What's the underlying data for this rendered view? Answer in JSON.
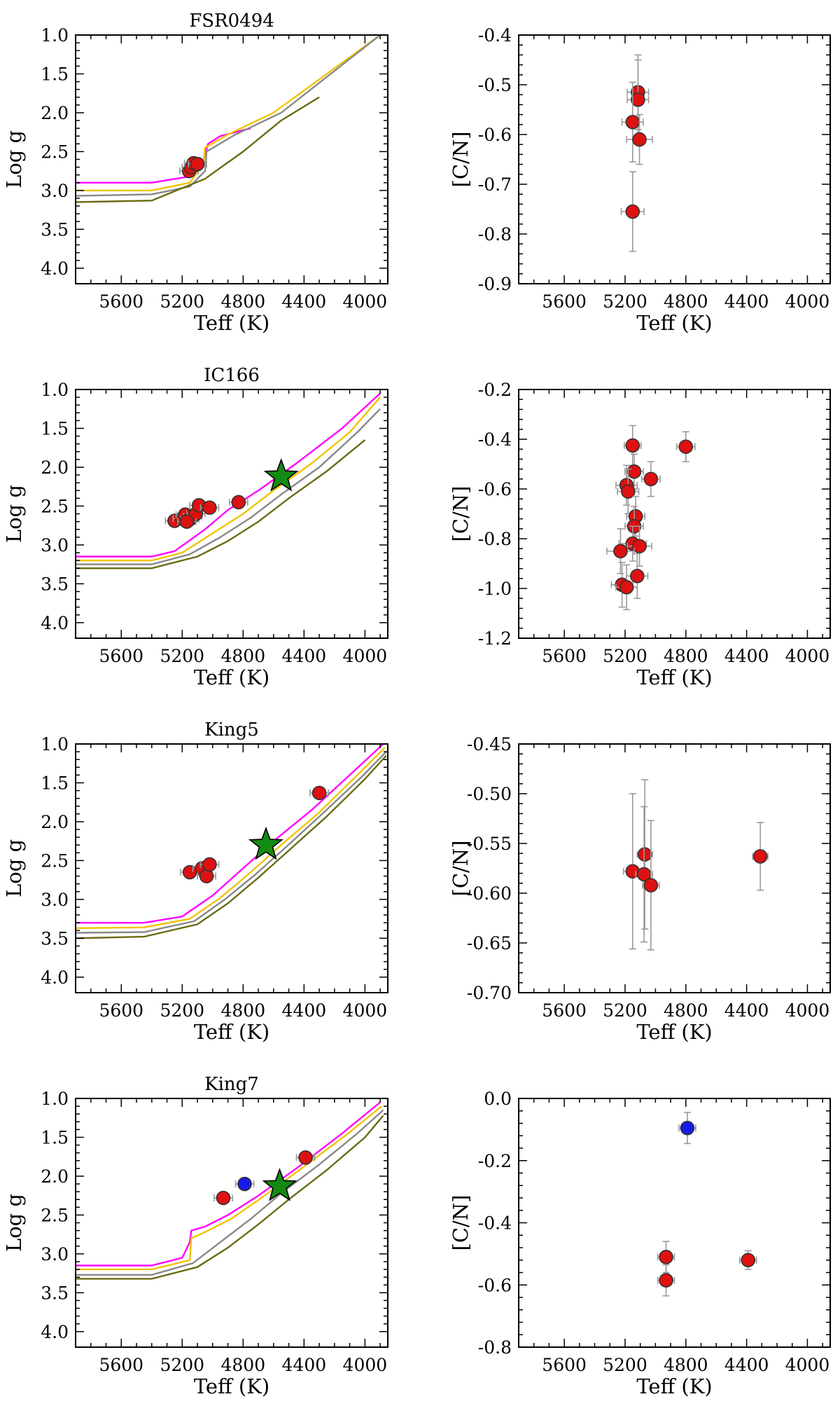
{
  "colors": {
    "red_star": "#dd1111",
    "blue_star": "#1a1ae6",
    "green_star": "#138a13",
    "errorbar": "#9a9a9a",
    "iso_magenta": "#ff00ff",
    "iso_gold": "#f0c400",
    "iso_gray": "#888888",
    "iso_olive": "#6b6b14"
  },
  "chart_data": [
    {
      "type": "scatter",
      "cluster": "FSR0494",
      "panel": "hr",
      "title": "FSR0494",
      "xlabel": "Teff (K)",
      "ylabel": "Log g",
      "xlim": [
        5900,
        3850
      ],
      "ylim": [
        4.2,
        1.0
      ],
      "xticks": [
        "5600",
        "5200",
        "4800",
        "4400",
        "4000"
      ],
      "yticks": [
        "1.0",
        "1.5",
        "2.0",
        "2.5",
        "3.0",
        "3.5",
        "4.0"
      ],
      "stars": [
        [
          5155,
          2.75
        ],
        [
          5110,
          2.67
        ],
        [
          5140,
          2.7
        ],
        [
          5125,
          2.65
        ],
        [
          5100,
          2.66
        ]
      ],
      "isochrones": [
        {
          "color": "magenta",
          "points": [
            [
              5900,
              2.9
            ],
            [
              5400,
              2.9
            ],
            [
              5150,
              2.82
            ],
            [
              5060,
              2.6
            ],
            [
              5030,
              2.4
            ],
            [
              4950,
              2.3
            ],
            [
              4750,
              2.2
            ]
          ]
        },
        {
          "color": "gold",
          "points": [
            [
              5900,
              3.0
            ],
            [
              5400,
              3.0
            ],
            [
              5150,
              2.9
            ],
            [
              5060,
              2.65
            ],
            [
              5050,
              2.45
            ],
            [
              4900,
              2.28
            ],
            [
              4600,
              2.0
            ],
            [
              3900,
              1.0
            ]
          ]
        },
        {
          "color": "gray",
          "points": [
            [
              5900,
              3.07
            ],
            [
              5400,
              3.05
            ],
            [
              5150,
              2.95
            ],
            [
              5050,
              2.75
            ],
            [
              5040,
              2.5
            ],
            [
              4850,
              2.28
            ],
            [
              4550,
              2.0
            ],
            [
              3900,
              1.0
            ]
          ]
        },
        {
          "color": "olive",
          "points": [
            [
              5900,
              3.15
            ],
            [
              5400,
              3.13
            ],
            [
              5050,
              2.85
            ],
            [
              4800,
              2.5
            ],
            [
              4550,
              2.1
            ],
            [
              4300,
              1.8
            ]
          ]
        }
      ]
    },
    {
      "type": "scatter",
      "cluster": "FSR0494",
      "panel": "cn",
      "title": "",
      "xlabel": "Teff (K)",
      "ylabel": "[C/N]",
      "xlim": [
        5900,
        3850
      ],
      "ylim": [
        -0.9,
        -0.4
      ],
      "xticks": [
        "5600",
        "5200",
        "4800",
        "4400",
        "4000"
      ],
      "yticks": [
        "-0.4",
        "-0.5",
        "-0.6",
        "-0.7",
        "-0.8",
        "-0.9"
      ],
      "stars": [
        [
          5115,
          -0.515,
          70,
          0.075
        ],
        [
          5115,
          -0.53,
          70,
          0.08
        ],
        [
          5150,
          -0.575,
          70,
          0.08
        ],
        [
          5105,
          -0.61,
          85,
          0.05
        ],
        [
          5150,
          -0.755,
          75,
          0.08
        ]
      ]
    },
    {
      "type": "scatter",
      "cluster": "IC166",
      "panel": "hr",
      "title": "IC166",
      "xlabel": "Teff (K)",
      "ylabel": "Log g",
      "xlim": [
        5900,
        3850
      ],
      "ylim": [
        4.2,
        1.0
      ],
      "xticks": [
        "5600",
        "5200",
        "4800",
        "4400",
        "4000"
      ],
      "yticks": [
        "1.0",
        "1.5",
        "2.0",
        "2.5",
        "3.0",
        "3.5",
        "4.0"
      ],
      "stars": [
        [
          5250,
          2.69
        ],
        [
          5200,
          2.66
        ],
        [
          5180,
          2.61
        ],
        [
          5150,
          2.67
        ],
        [
          5130,
          2.63
        ],
        [
          5110,
          2.6
        ],
        [
          5090,
          2.49
        ],
        [
          5020,
          2.52
        ],
        [
          4830,
          2.45
        ],
        [
          5170,
          2.7
        ]
      ],
      "special": [
        [
          4550,
          2.12
        ]
      ],
      "isochrones": [
        {
          "color": "magenta",
          "points": [
            [
              5900,
              3.15
            ],
            [
              5400,
              3.15
            ],
            [
              5250,
              3.08
            ],
            [
              5050,
              2.8
            ],
            [
              4900,
              2.55
            ],
            [
              4700,
              2.3
            ],
            [
              4450,
              1.95
            ],
            [
              4150,
              1.5
            ],
            [
              3900,
              1.05
            ]
          ]
        },
        {
          "color": "gold",
          "points": [
            [
              5900,
              3.2
            ],
            [
              5400,
              3.2
            ],
            [
              5200,
              3.1
            ],
            [
              5000,
              2.85
            ],
            [
              4800,
              2.6
            ],
            [
              4600,
              2.3
            ],
            [
              4350,
              1.95
            ],
            [
              4100,
              1.55
            ],
            [
              3900,
              1.1
            ]
          ]
        },
        {
          "color": "gray",
          "points": [
            [
              5900,
              3.25
            ],
            [
              5400,
              3.25
            ],
            [
              5150,
              3.12
            ],
            [
              4950,
              2.9
            ],
            [
              4750,
              2.65
            ],
            [
              4550,
              2.35
            ],
            [
              4300,
              2.0
            ],
            [
              4050,
              1.55
            ],
            [
              3900,
              1.25
            ]
          ]
        },
        {
          "color": "olive",
          "points": [
            [
              5900,
              3.3
            ],
            [
              5400,
              3.3
            ],
            [
              5100,
              3.15
            ],
            [
              4900,
              2.95
            ],
            [
              4700,
              2.7
            ],
            [
              4500,
              2.4
            ],
            [
              4250,
              2.05
            ],
            [
              4000,
              1.65
            ]
          ]
        }
      ]
    },
    {
      "type": "scatter",
      "cluster": "IC166",
      "panel": "cn",
      "title": "",
      "xlabel": "Teff (K)",
      "ylabel": "[C/N]",
      "xlim": [
        5900,
        3850
      ],
      "ylim": [
        -1.2,
        -0.2
      ],
      "xticks": [
        "5600",
        "5200",
        "4800",
        "4400",
        "4000"
      ],
      "yticks": [
        "-0.2",
        "-0.4",
        "-0.6",
        "-0.8",
        "-1.0",
        "-1.2"
      ],
      "stars": [
        [
          5150,
          -0.425,
          55,
          0.08
        ],
        [
          4800,
          -0.43,
          60,
          0.06
        ],
        [
          5140,
          -0.53,
          60,
          0.07
        ],
        [
          5030,
          -0.56,
          60,
          0.07
        ],
        [
          5190,
          -0.585,
          70,
          0.08
        ],
        [
          5180,
          -0.61,
          70,
          0.09
        ],
        [
          5130,
          -0.71,
          60,
          0.08
        ],
        [
          5140,
          -0.75,
          60,
          0.08
        ],
        [
          5150,
          -0.82,
          90,
          0.07
        ],
        [
          5105,
          -0.83,
          80,
          0.08
        ],
        [
          5230,
          -0.85,
          90,
          0.09
        ],
        [
          5120,
          -0.95,
          70,
          0.09
        ],
        [
          5220,
          -0.985,
          70,
          0.09
        ],
        [
          5190,
          -0.995,
          70,
          0.09
        ]
      ]
    },
    {
      "type": "scatter",
      "cluster": "King5",
      "panel": "hr",
      "title": "King5",
      "xlabel": "Teff (K)",
      "ylabel": "Log g",
      "xlim": [
        5900,
        3850
      ],
      "ylim": [
        4.2,
        1.0
      ],
      "xticks": [
        "5600",
        "5200",
        "4800",
        "4400",
        "4000"
      ],
      "yticks": [
        "1.0",
        "1.5",
        "2.0",
        "2.5",
        "3.0",
        "3.5",
        "4.0"
      ],
      "stars": [
        [
          5150,
          2.65
        ],
        [
          5070,
          2.6
        ],
        [
          5040,
          2.7
        ],
        [
          5020,
          2.55
        ],
        [
          4300,
          1.63
        ]
      ],
      "special": [
        [
          4650,
          2.3
        ]
      ],
      "isochrones": [
        {
          "color": "magenta",
          "points": [
            [
              5900,
              3.3
            ],
            [
              5450,
              3.3
            ],
            [
              5200,
              3.22
            ],
            [
              5000,
              2.95
            ],
            [
              4800,
              2.6
            ],
            [
              4600,
              2.25
            ],
            [
              4350,
              1.85
            ],
            [
              4100,
              1.4
            ],
            [
              3880,
              1.0
            ]
          ]
        },
        {
          "color": "gold",
          "points": [
            [
              5900,
              3.37
            ],
            [
              5450,
              3.36
            ],
            [
              5150,
              3.25
            ],
            [
              4950,
              2.98
            ],
            [
              4750,
              2.65
            ],
            [
              4550,
              2.3
            ],
            [
              4300,
              1.88
            ],
            [
              4050,
              1.4
            ],
            [
              3870,
              1.05
            ]
          ]
        },
        {
          "color": "gray",
          "points": [
            [
              5900,
              3.43
            ],
            [
              5450,
              3.42
            ],
            [
              5120,
              3.28
            ],
            [
              4920,
              3.0
            ],
            [
              4720,
              2.68
            ],
            [
              4520,
              2.33
            ],
            [
              4280,
              1.9
            ],
            [
              4020,
              1.42
            ],
            [
              3860,
              1.1
            ]
          ]
        },
        {
          "color": "olive",
          "points": [
            [
              5900,
              3.5
            ],
            [
              5450,
              3.48
            ],
            [
              5100,
              3.32
            ],
            [
              4900,
              3.05
            ],
            [
              4700,
              2.72
            ],
            [
              4500,
              2.37
            ],
            [
              4250,
              1.93
            ],
            [
              4000,
              1.45
            ],
            [
              3860,
              1.15
            ]
          ]
        }
      ]
    },
    {
      "type": "scatter",
      "cluster": "King5",
      "panel": "cn",
      "title": "",
      "xlabel": "Teff (K)",
      "ylabel": "[C/N]",
      "xlim": [
        5900,
        3850
      ],
      "ylim": [
        -0.7,
        -0.45
      ],
      "xticks": [
        "5600",
        "5200",
        "4800",
        "4400",
        "4000"
      ],
      "yticks": [
        "-0.45",
        "-0.50",
        "-0.55",
        "-0.60",
        "-0.65",
        "-0.70"
      ],
      "stars": [
        [
          5150,
          -0.578,
          60,
          0.078
        ],
        [
          5070,
          -0.561,
          50,
          0.075
        ],
        [
          5075,
          -0.581,
          55,
          0.068
        ],
        [
          5030,
          -0.592,
          55,
          0.065
        ],
        [
          4310,
          -0.563,
          50,
          0.034
        ]
      ]
    },
    {
      "type": "scatter",
      "cluster": "King7",
      "panel": "hr",
      "title": "King7",
      "xlabel": "Teff (K)",
      "ylabel": "Log g",
      "xlim": [
        5900,
        3850
      ],
      "ylim": [
        4.2,
        1.0
      ],
      "xticks": [
        "5600",
        "5200",
        "4800",
        "4400",
        "4000"
      ],
      "yticks": [
        "1.0",
        "1.5",
        "2.0",
        "2.5",
        "3.0",
        "3.5",
        "4.0"
      ],
      "stars": [
        [
          4930,
          2.28
        ],
        [
          4390,
          1.76
        ]
      ],
      "blue": [
        [
          4790,
          2.1
        ]
      ],
      "special": [
        [
          4560,
          2.13
        ]
      ],
      "isochrones": [
        {
          "color": "magenta",
          "points": [
            [
              5900,
              3.15
            ],
            [
              5400,
              3.15
            ],
            [
              5200,
              3.05
            ],
            [
              5150,
              2.85
            ],
            [
              5140,
              2.7
            ],
            [
              5050,
              2.65
            ],
            [
              4900,
              2.5
            ],
            [
              4700,
              2.25
            ],
            [
              4450,
              1.9
            ],
            [
              4150,
              1.45
            ],
            [
              3900,
              1.05
            ]
          ]
        },
        {
          "color": "gold",
          "points": [
            [
              5900,
              3.2
            ],
            [
              5400,
              3.2
            ],
            [
              5150,
              3.08
            ],
            [
              5140,
              2.8
            ],
            [
              5050,
              2.72
            ],
            [
              4880,
              2.55
            ],
            [
              4680,
              2.28
            ],
            [
              4430,
              1.92
            ],
            [
              4130,
              1.48
            ],
            [
              3890,
              1.1
            ]
          ]
        },
        {
          "color": "gray",
          "points": [
            [
              5900,
              3.27
            ],
            [
              5400,
              3.27
            ],
            [
              5130,
              3.12
            ],
            [
              4950,
              2.85
            ],
            [
              4750,
              2.55
            ],
            [
              4550,
              2.22
            ],
            [
              4300,
              1.85
            ],
            [
              4050,
              1.45
            ],
            [
              3880,
              1.15
            ]
          ]
        },
        {
          "color": "olive",
          "points": [
            [
              5900,
              3.32
            ],
            [
              5400,
              3.32
            ],
            [
              5100,
              3.17
            ],
            [
              4900,
              2.92
            ],
            [
              4700,
              2.62
            ],
            [
              4500,
              2.3
            ],
            [
              4250,
              1.92
            ],
            [
              4000,
              1.5
            ],
            [
              3880,
              1.22
            ]
          ]
        }
      ]
    },
    {
      "type": "scatter",
      "cluster": "King7",
      "panel": "cn",
      "title": "",
      "xlabel": "Teff (K)",
      "ylabel": "[C/N]",
      "xlim": [
        5900,
        3850
      ],
      "ylim": [
        -0.8,
        0.0
      ],
      "xticks": [
        "5600",
        "5200",
        "4800",
        "4400",
        "4000"
      ],
      "yticks": [
        "0.0",
        "-0.2",
        "-0.4",
        "-0.6",
        "-0.8"
      ],
      "stars": [
        [
          4930,
          -0.51,
          55,
          0.05
        ],
        [
          4930,
          -0.585,
          55,
          0.05
        ],
        [
          4390,
          -0.52,
          55,
          0.03
        ]
      ],
      "blue": [
        [
          4790,
          -0.095,
          55,
          0.05
        ]
      ]
    }
  ]
}
